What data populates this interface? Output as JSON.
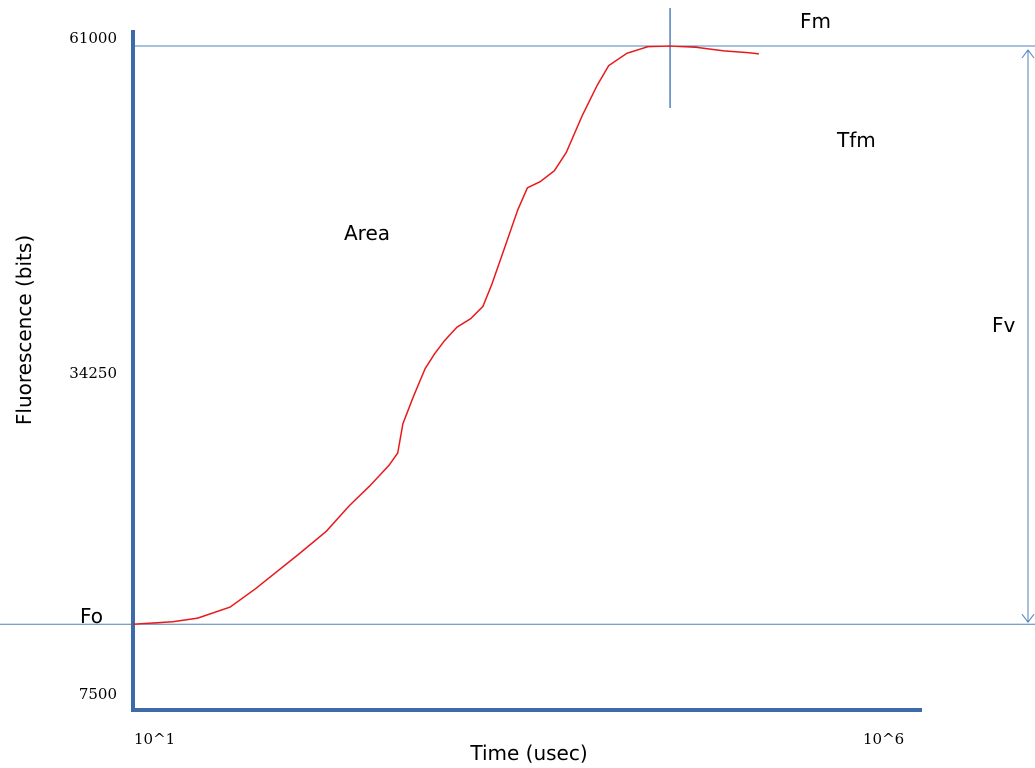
{
  "chart_data": {
    "type": "line",
    "title": "",
    "xlabel": "Time (usec)",
    "ylabel": "Fluorescence (bits)",
    "x_scale": "log",
    "xlim": [
      10,
      1000000
    ],
    "ylim": [
      7500,
      61000
    ],
    "x_tick_labels": [
      "10^1",
      "10^6"
    ],
    "y_tick_labels": [
      {
        "label": "61000",
        "value": 61000
      },
      {
        "label": "34250",
        "value": 34250
      },
      {
        "label": "7500",
        "value": 7500
      }
    ],
    "grid": false,
    "legend": "none",
    "colors": {
      "curve": "#e8191b",
      "guide": "#4f81bd",
      "axis": "#3d6aa8"
    },
    "series": [
      {
        "values": [
          [
            10,
            13700
          ],
          [
            18,
            13900
          ],
          [
            26,
            14200
          ],
          [
            42,
            15100
          ],
          [
            61,
            16600
          ],
          [
            115,
            19400
          ],
          [
            174,
            21300
          ],
          [
            245,
            23400
          ],
          [
            330,
            25000
          ],
          [
            440,
            26700
          ],
          [
            500,
            27700
          ],
          [
            540,
            30100
          ],
          [
            630,
            32300
          ],
          [
            750,
            34600
          ],
          [
            860,
            35800
          ],
          [
            1000,
            36900
          ],
          [
            1200,
            38000
          ],
          [
            1470,
            38700
          ],
          [
            1760,
            39700
          ],
          [
            2010,
            41500
          ],
          [
            2400,
            44300
          ],
          [
            2950,
            47600
          ],
          [
            3400,
            49400
          ],
          [
            4100,
            49900
          ],
          [
            5070,
            50800
          ],
          [
            6040,
            52300
          ],
          [
            7640,
            55300
          ],
          [
            9550,
            57800
          ],
          [
            11300,
            59400
          ],
          [
            14800,
            60400
          ],
          [
            20200,
            60950
          ],
          [
            28000,
            61000
          ],
          [
            41000,
            60900
          ],
          [
            62000,
            60600
          ],
          [
            90000,
            60450
          ],
          [
            104000,
            60350
          ]
        ]
      }
    ],
    "annotations": {
      "fo": "Fo",
      "fm": "Fm",
      "tfm": "Tfm",
      "fv": "Fv",
      "area": "Area",
      "fo_value": 13700,
      "fm_value": 61000,
      "tfm_time": 28000
    }
  }
}
